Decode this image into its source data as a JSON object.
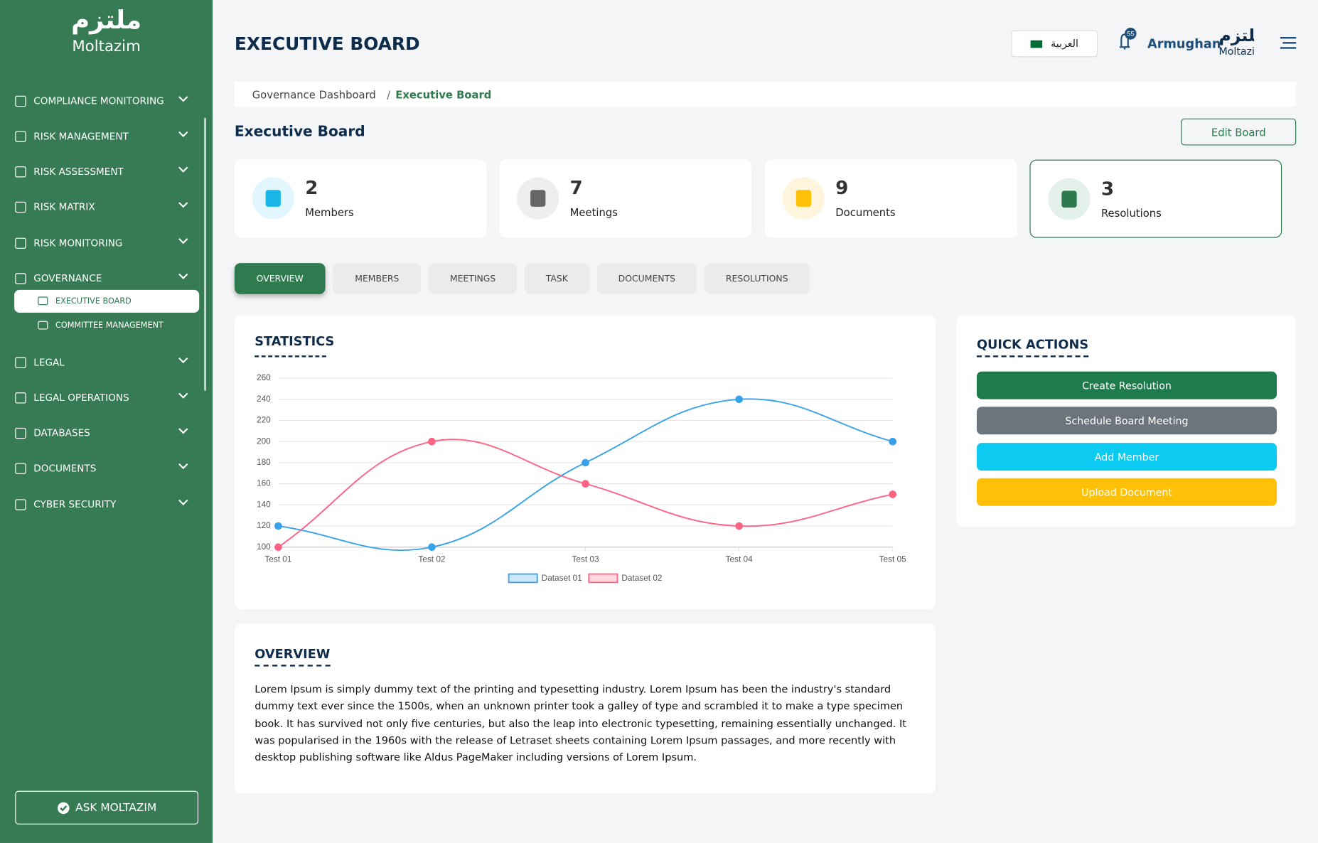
{
  "sidebar": {
    "logo_arabic": "ملتزم",
    "logo": "Moltazim",
    "menu": [
      "COMPLIANCE MONITORING",
      "RISK MANAGEMENT",
      "RISK ASSESSMENT",
      "RISK MATRIX",
      "RISK MONITORING",
      "GOVERNANCE"
    ],
    "submenu": [
      "EXECUTIVE BOARD",
      "COMMITTEE MANAGEMENT"
    ],
    "menu_after": [
      "LEGAL",
      "LEGAL OPERATIONS",
      "DATABASES",
      "DOCUMENTS",
      "CYBER SECURITY"
    ],
    "ask": "ASK MOLTAZIM"
  },
  "header": {
    "title": "EXECUTIVE BOARD",
    "language": "العربية",
    "notifications": 55,
    "user": "Armughan",
    "brand_arabic": "ملتزم",
    "brand": "Moltazim"
  },
  "breadcrumb": {
    "parent": "Governance Dashboard",
    "separator": "/",
    "current": "Executive Board"
  },
  "page": {
    "heading": "Executive Board",
    "edit_button": "Edit Board"
  },
  "stats": [
    {
      "value": 2,
      "label": "Members"
    },
    {
      "value": 7,
      "label": "Meetings"
    },
    {
      "value": 9,
      "label": "Documents"
    },
    {
      "value": 3,
      "label": "Resolutions"
    }
  ],
  "tabs": [
    "OVERVIEW",
    "MEMBERS",
    "MEETINGS",
    "TASK",
    "DOCUMENTS",
    "RESOLUTIONS"
  ],
  "chart_data": {
    "type": "line",
    "title": "STATISTICS",
    "categories": [
      "Test 01",
      "Test 02",
      "Test 03",
      "Test 04",
      "Test 05"
    ],
    "series": [
      {
        "name": "Dataset 01",
        "color": "#36a2eb",
        "values": [
          120,
          100,
          180,
          240,
          200
        ]
      },
      {
        "name": "Dataset 02",
        "color": "#ff6384",
        "values": [
          100,
          200,
          160,
          120,
          150
        ]
      }
    ],
    "ylim": [
      100,
      260
    ],
    "yticks": [
      100,
      120,
      140,
      160,
      180,
      200,
      220,
      240,
      260
    ],
    "grid": true,
    "legend": "bottom"
  },
  "quick_actions": {
    "title": "QUICK ACTIONS",
    "buttons": [
      "Create Resolution",
      "Schedule Board Meeting",
      "Add Member",
      "Upload Document"
    ]
  },
  "overview": {
    "title": "OVERVIEW",
    "text": "Lorem Ipsum is simply dummy text of the printing and typesetting industry. Lorem Ipsum has been the industry's standard dummy text ever since the 1500s, when an unknown printer took a galley of type and scrambled it to make a type specimen book. It has survived not only five centuries, but also the leap into electronic typesetting, remaining essentially unchanged. It was popularised in the 1960s with the release of Letraset sheets containing Lorem Ipsum passages, and more recently with desktop publishing software like Aldus PageMaker including versions of Lorem Ipsum."
  }
}
